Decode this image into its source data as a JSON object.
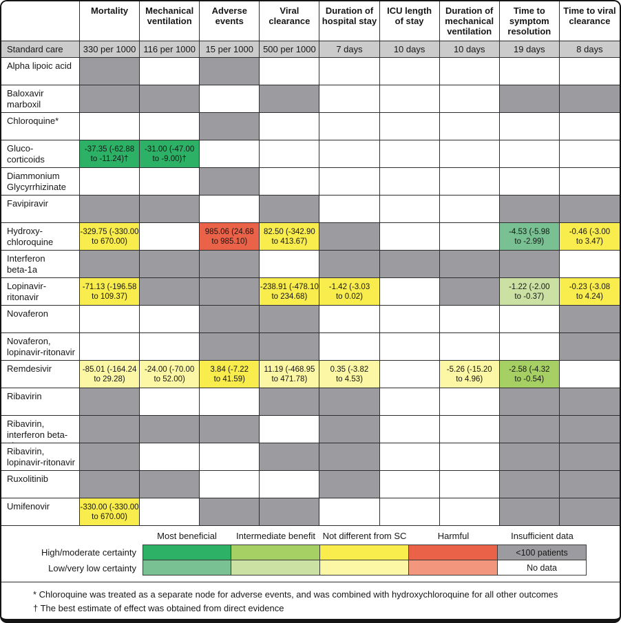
{
  "palette": {
    "MBH": "#2DB166",
    "MBL": "#79C193",
    "IBH": "#A6D063",
    "IBL": "#CBE1A3",
    "NDH": "#F9EC4D",
    "NDL": "#FBF7A5",
    "HH": "#EA6349",
    "HL": "#F2967E",
    "I": "#9C9CA0",
    "N": "#FFFFFF",
    "standard_bg": "#CBCBCB",
    "grid_line": "#2d2d2d"
  },
  "chart_data": {
    "type": "heatmap",
    "description": "League table of treatment effects versus standard care; colors encode benefit/harm category and certainty of evidence",
    "columns": [
      "Mortality",
      "Mechanical\nventilation",
      "Adverse\nevents",
      "Viral\nclearance",
      "Duration of\nhospital stay",
      "ICU length\nof stay",
      "Duration of\nmechanical\nventilation",
      "Time to\nsymptom\nresolution",
      "Time to viral\nclearance"
    ],
    "standard_care": {
      "label": "Standard care",
      "values": [
        "330 per 1000",
        "116 per 1000",
        "15 per 1000",
        "500 per 1000",
        "7 days",
        "10 days",
        "10 days",
        "19 days",
        "8 days"
      ]
    },
    "cell_type_meanings": {
      "MBH": "Most beneficial, high/moderate certainty",
      "MBL": "Most beneficial, low/very low certainty",
      "IBH": "Intermediate benefit, high/moderate certainty",
      "IBL": "Intermediate benefit, low/very low certainty",
      "NDH": "Not different from SC, high/moderate certainty",
      "NDL": "Not different from SC, low/very low certainty",
      "HH": "Harmful, high/moderate certainty",
      "HL": "Harmful, low/very low certainty",
      "I": "Insufficient data (<100 patients)",
      "N": "No data"
    },
    "rows": [
      {
        "label": "Alpha lipoic acid",
        "cells": [
          {
            "t": "I"
          },
          {
            "t": "N"
          },
          {
            "t": "I"
          },
          {
            "t": "N"
          },
          {
            "t": "N"
          },
          {
            "t": "N"
          },
          {
            "t": "N"
          },
          {
            "t": "N"
          },
          {
            "t": "N"
          }
        ]
      },
      {
        "label": "Baloxavir\nmarboxil",
        "cells": [
          {
            "t": "I"
          },
          {
            "t": "I"
          },
          {
            "t": "N"
          },
          {
            "t": "I"
          },
          {
            "t": "N"
          },
          {
            "t": "N"
          },
          {
            "t": "N"
          },
          {
            "t": "I"
          },
          {
            "t": "I"
          }
        ]
      },
      {
        "label": "Chloroquine*",
        "cells": [
          {
            "t": "N"
          },
          {
            "t": "N"
          },
          {
            "t": "I"
          },
          {
            "t": "N"
          },
          {
            "t": "N"
          },
          {
            "t": "N"
          },
          {
            "t": "N"
          },
          {
            "t": "N"
          },
          {
            "t": "N"
          }
        ]
      },
      {
        "label": "Gluco-\ncorticoids",
        "cells": [
          {
            "t": "MBH",
            "v": "-37.35 (-62.88\nto -11.24)†"
          },
          {
            "t": "MBH",
            "v": "-31.00 (-47.00\nto -9.00)†"
          },
          {
            "t": "N"
          },
          {
            "t": "N"
          },
          {
            "t": "N"
          },
          {
            "t": "N"
          },
          {
            "t": "N"
          },
          {
            "t": "N"
          },
          {
            "t": "N"
          }
        ]
      },
      {
        "label": "Diammonium\nGlycyrrhizinate",
        "cells": [
          {
            "t": "N"
          },
          {
            "t": "N"
          },
          {
            "t": "I"
          },
          {
            "t": "N"
          },
          {
            "t": "N"
          },
          {
            "t": "N"
          },
          {
            "t": "N"
          },
          {
            "t": "N"
          },
          {
            "t": "N"
          }
        ]
      },
      {
        "label": "Favipiravir",
        "cells": [
          {
            "t": "I"
          },
          {
            "t": "I"
          },
          {
            "t": "N"
          },
          {
            "t": "I"
          },
          {
            "t": "N"
          },
          {
            "t": "N"
          },
          {
            "t": "N"
          },
          {
            "t": "I"
          },
          {
            "t": "I"
          }
        ]
      },
      {
        "label": "Hydroxy-\nchloroquine",
        "cells": [
          {
            "t": "NDH",
            "v": "-329.75 (-330.00\nto 670.00)"
          },
          {
            "t": "N"
          },
          {
            "t": "HH",
            "v": "985.06 (24.68\nto 985.10)"
          },
          {
            "t": "NDH",
            "v": "82.50 (-342.90\nto 413.67)"
          },
          {
            "t": "I"
          },
          {
            "t": "N"
          },
          {
            "t": "N"
          },
          {
            "t": "MBL",
            "v": "-4.53 (-5.98\nto -2.99)"
          },
          {
            "t": "NDH",
            "v": "-0.46 (-3.00\nto 3.47)"
          }
        ]
      },
      {
        "label": "Interferon\nbeta-1a",
        "cells": [
          {
            "t": "I"
          },
          {
            "t": "I"
          },
          {
            "t": "I"
          },
          {
            "t": "N"
          },
          {
            "t": "I"
          },
          {
            "t": "I"
          },
          {
            "t": "I"
          },
          {
            "t": "I"
          },
          {
            "t": "N"
          }
        ]
      },
      {
        "label": "Lopinavir-\nritonavir",
        "cells": [
          {
            "t": "NDH",
            "v": "-71.13 (-196.58\nto 109.37)"
          },
          {
            "t": "I"
          },
          {
            "t": "I"
          },
          {
            "t": "NDH",
            "v": "-238.91 (-478.10\nto 234.68)"
          },
          {
            "t": "NDH",
            "v": "-1.42 (-3.03\nto 0.02)"
          },
          {
            "t": "N"
          },
          {
            "t": "I"
          },
          {
            "t": "IBL",
            "v": "-1.22 (-2.00\nto -0.37)"
          },
          {
            "t": "NDH",
            "v": "-0.23 (-3.08\nto 4.24)"
          }
        ]
      },
      {
        "label": "Novaferon",
        "cells": [
          {
            "t": "N"
          },
          {
            "t": "N"
          },
          {
            "t": "I"
          },
          {
            "t": "I"
          },
          {
            "t": "N"
          },
          {
            "t": "N"
          },
          {
            "t": "N"
          },
          {
            "t": "N"
          },
          {
            "t": "I"
          }
        ]
      },
      {
        "label": "Novaferon,\nlopinavir-ritonavir",
        "cells": [
          {
            "t": "N"
          },
          {
            "t": "N"
          },
          {
            "t": "I"
          },
          {
            "t": "I"
          },
          {
            "t": "N"
          },
          {
            "t": "N"
          },
          {
            "t": "N"
          },
          {
            "t": "N"
          },
          {
            "t": "I"
          }
        ]
      },
      {
        "label": "Remdesivir",
        "cells": [
          {
            "t": "NDL",
            "v": "-85.01 (-164.24\nto 29.28)"
          },
          {
            "t": "NDL",
            "v": "-24.00 (-70.00\nto 52.00)"
          },
          {
            "t": "NDH",
            "v": "3.84 (-7.22\nto 41.59)"
          },
          {
            "t": "NDL",
            "v": "11.19 (-468.95\nto 471.78)"
          },
          {
            "t": "NDL",
            "v": "0.35 (-3.82\nto 4.53)"
          },
          {
            "t": "N"
          },
          {
            "t": "NDL",
            "v": "-5.26 (-15.20\nto 4.96)"
          },
          {
            "t": "IBH",
            "v": "-2.58 (-4.32\nto -0.54)"
          },
          {
            "t": "N"
          }
        ]
      },
      {
        "label": "Ribavirin",
        "cells": [
          {
            "t": "I"
          },
          {
            "t": "N"
          },
          {
            "t": "N"
          },
          {
            "t": "I"
          },
          {
            "t": "I"
          },
          {
            "t": "N"
          },
          {
            "t": "N"
          },
          {
            "t": "I"
          },
          {
            "t": "I"
          }
        ]
      },
      {
        "label": "Ribavirin,\ninterferon beta-1b",
        "cells": [
          {
            "t": "I"
          },
          {
            "t": "I"
          },
          {
            "t": "I"
          },
          {
            "t": "N"
          },
          {
            "t": "I"
          },
          {
            "t": "N"
          },
          {
            "t": "N"
          },
          {
            "t": "I"
          },
          {
            "t": "I"
          }
        ]
      },
      {
        "label": "Ribavirin,\nlopinavir-ritonavir",
        "cells": [
          {
            "t": "I"
          },
          {
            "t": "N"
          },
          {
            "t": "N"
          },
          {
            "t": "I"
          },
          {
            "t": "I"
          },
          {
            "t": "N"
          },
          {
            "t": "N"
          },
          {
            "t": "I"
          },
          {
            "t": "I"
          }
        ]
      },
      {
        "label": "Ruxolitinib",
        "cells": [
          {
            "t": "I"
          },
          {
            "t": "I"
          },
          {
            "t": "N"
          },
          {
            "t": "N"
          },
          {
            "t": "I"
          },
          {
            "t": "N"
          },
          {
            "t": "N"
          },
          {
            "t": "I"
          },
          {
            "t": "I"
          }
        ]
      },
      {
        "label": "Umifenovir",
        "cells": [
          {
            "t": "NDH",
            "v": "-330.00 (-330.00\nto 670.00)"
          },
          {
            "t": "N"
          },
          {
            "t": "I"
          },
          {
            "t": "I"
          },
          {
            "t": "N"
          },
          {
            "t": "N"
          },
          {
            "t": "N"
          },
          {
            "t": "I"
          },
          {
            "t": "I"
          }
        ]
      }
    ]
  },
  "legend": {
    "col_headers": [
      "Most beneficial",
      "Intermediate benefit",
      "Not different from SC",
      "Harmful",
      "Insufficient data"
    ],
    "row_labels": [
      "High/moderate certainty",
      "Low/very low certainty"
    ],
    "swatch_rows": [
      [
        "MBH",
        "IBH",
        "NDH",
        "HH",
        "I"
      ],
      [
        "MBL",
        "IBL",
        "NDL",
        "HL",
        "N"
      ]
    ],
    "swatch_texts": {
      "I": "<100 patients",
      "N": "No data"
    }
  },
  "footnotes": [
    "* Chloroquine was treated as a separate node for adverse events, and was combined with hydroxychloroquine for all other outcomes",
    "† The best estimate of effect was obtained from direct evidence"
  ]
}
